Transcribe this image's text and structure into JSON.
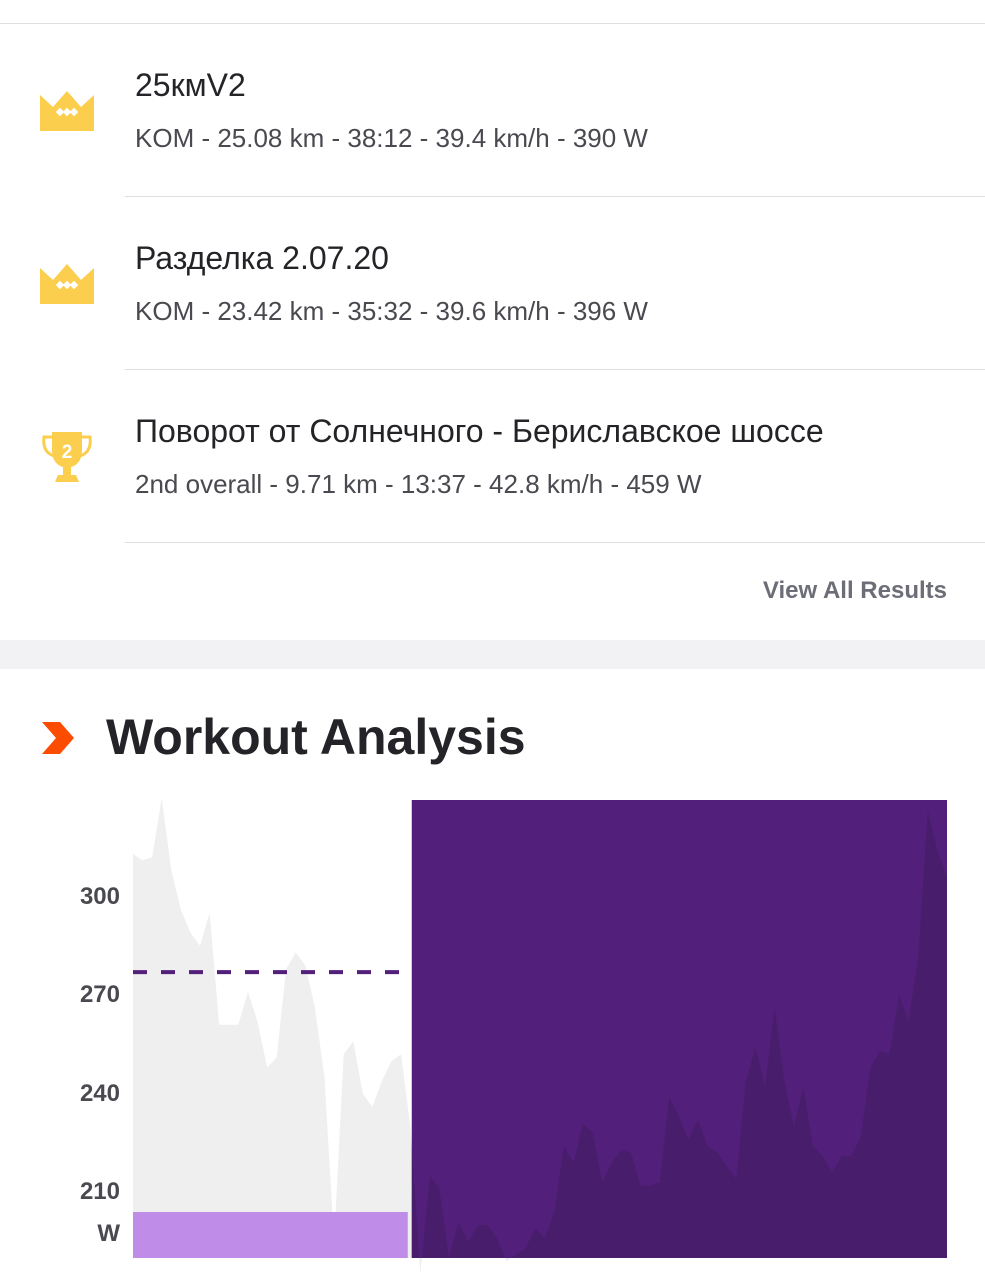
{
  "results": [
    {
      "icon": "crown-icon",
      "name": "25кмV2",
      "stats": "KOM - 25.08 km - 38:12 - 39.4 km/h - 390 W"
    },
    {
      "icon": "crown-icon",
      "name": "Разделка 2.07.20",
      "stats": "KOM - 23.42 km - 35:32 - 39.6 km/h - 396 W"
    },
    {
      "icon": "trophy-icon",
      "trophy_rank": "2",
      "name": "Поворот от Солнечного - Бериславское шоссе",
      "stats": "2nd overall - 9.71 km - 13:37 - 42.8 km/h - 459 W"
    }
  ],
  "view_all_label": "View All Results",
  "section": {
    "icon": "chevron-right-icon",
    "title": "Workout Analysis"
  },
  "colors": {
    "crown": "#fcce4d",
    "accent_orange": "#fc4c02",
    "purple_dark": "#521f7a",
    "purple_light": "#bf8de8",
    "power_fill": "#efefef"
  },
  "chart_data": {
    "type": "area",
    "y_tick_labels": [
      "300",
      "270",
      "240",
      "210"
    ],
    "y_unit": "W",
    "ylim": [
      190,
      330
    ],
    "average_line": 277,
    "selection_range": [
      0.34,
      1.0
    ],
    "series": [
      {
        "values": [
          313,
          311,
          312,
          330,
          308,
          296,
          289,
          285,
          295,
          261,
          261,
          261,
          271,
          262,
          248,
          251,
          278,
          283,
          279,
          266,
          245,
          195,
          252,
          256,
          240,
          236,
          244,
          250,
          252,
          229,
          185,
          215,
          211,
          190,
          201,
          195,
          200,
          200,
          196,
          189,
          191,
          193,
          199,
          196,
          204,
          224,
          219,
          231,
          228,
          213,
          219,
          223,
          222,
          212,
          212,
          213,
          239,
          233,
          226,
          232,
          224,
          222,
          218,
          214,
          244,
          254,
          242,
          266,
          244,
          230,
          242,
          224,
          221,
          216,
          221,
          221,
          227,
          248,
          253,
          252,
          270,
          262,
          282,
          326,
          314,
          306
        ]
      }
    ]
  }
}
